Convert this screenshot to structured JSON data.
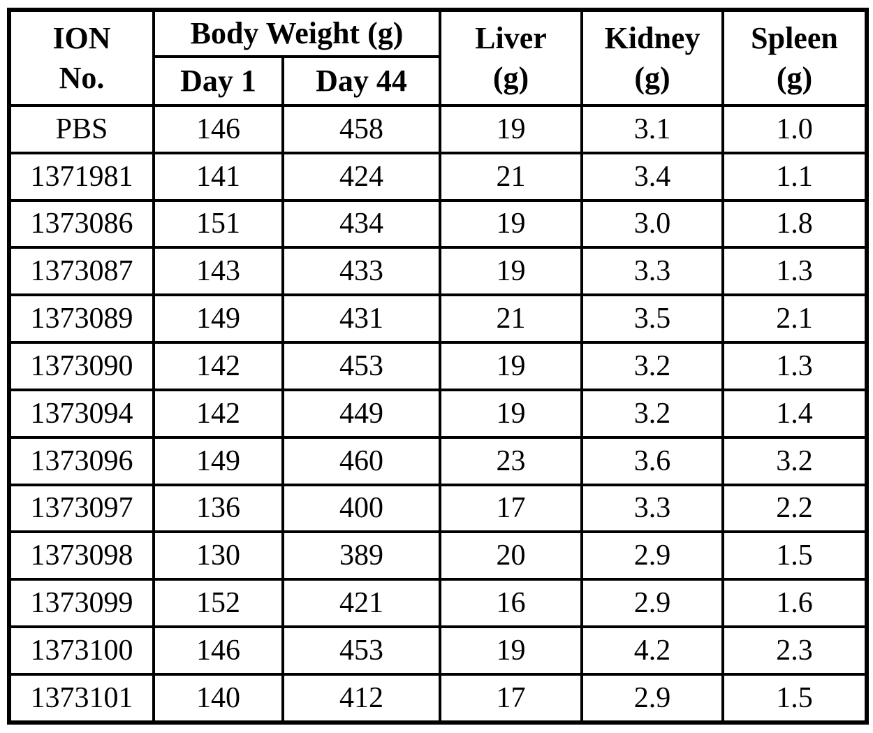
{
  "table": {
    "header": {
      "ion_line1": "ION",
      "ion_line2": "No.",
      "body_weight": "Body Weight (g)",
      "day1": "Day 1",
      "day44": "Day 44",
      "liver_line1": "Liver",
      "liver_line2": "(g)",
      "kidney_line1": "Kidney",
      "kidney_line2": "(g)",
      "spleen_line1": "Spleen",
      "spleen_line2": "(g)"
    },
    "columns": [
      "ION No.",
      "Body Weight (g) Day 1",
      "Body Weight (g) Day 44",
      "Liver (g)",
      "Kidney (g)",
      "Spleen (g)"
    ],
    "rows": [
      [
        "PBS",
        "146",
        "458",
        "19",
        "3.1",
        "1.0"
      ],
      [
        "1371981",
        "141",
        "424",
        "21",
        "3.4",
        "1.1"
      ],
      [
        "1373086",
        "151",
        "434",
        "19",
        "3.0",
        "1.8"
      ],
      [
        "1373087",
        "143",
        "433",
        "19",
        "3.3",
        "1.3"
      ],
      [
        "1373089",
        "149",
        "431",
        "21",
        "3.5",
        "2.1"
      ],
      [
        "1373090",
        "142",
        "453",
        "19",
        "3.2",
        "1.3"
      ],
      [
        "1373094",
        "142",
        "449",
        "19",
        "3.2",
        "1.4"
      ],
      [
        "1373096",
        "149",
        "460",
        "23",
        "3.6",
        "3.2"
      ],
      [
        "1373097",
        "136",
        "400",
        "17",
        "3.3",
        "2.2"
      ],
      [
        "1373098",
        "130",
        "389",
        "20",
        "2.9",
        "1.5"
      ],
      [
        "1373099",
        "152",
        "421",
        "16",
        "2.9",
        "1.6"
      ],
      [
        "1373100",
        "146",
        "453",
        "19",
        "4.2",
        "2.3"
      ],
      [
        "1373101",
        "140",
        "412",
        "17",
        "2.9",
        "1.5"
      ]
    ]
  },
  "chart_data": {
    "type": "table",
    "title": "",
    "columns": [
      "ION No.",
      "Body Weight (g) Day 1",
      "Body Weight (g) Day 44",
      "Liver (g)",
      "Kidney (g)",
      "Spleen (g)"
    ],
    "rows": [
      {
        "ion_no": "PBS",
        "body_weight_day1": 146,
        "body_weight_day44": 458,
        "liver_g": 19,
        "kidney_g": 3.1,
        "spleen_g": 1.0
      },
      {
        "ion_no": "1371981",
        "body_weight_day1": 141,
        "body_weight_day44": 424,
        "liver_g": 21,
        "kidney_g": 3.4,
        "spleen_g": 1.1
      },
      {
        "ion_no": "1373086",
        "body_weight_day1": 151,
        "body_weight_day44": 434,
        "liver_g": 19,
        "kidney_g": 3.0,
        "spleen_g": 1.8
      },
      {
        "ion_no": "1373087",
        "body_weight_day1": 143,
        "body_weight_day44": 433,
        "liver_g": 19,
        "kidney_g": 3.3,
        "spleen_g": 1.3
      },
      {
        "ion_no": "1373089",
        "body_weight_day1": 149,
        "body_weight_day44": 431,
        "liver_g": 21,
        "kidney_g": 3.5,
        "spleen_g": 2.1
      },
      {
        "ion_no": "1373090",
        "body_weight_day1": 142,
        "body_weight_day44": 453,
        "liver_g": 19,
        "kidney_g": 3.2,
        "spleen_g": 1.3
      },
      {
        "ion_no": "1373094",
        "body_weight_day1": 142,
        "body_weight_day44": 449,
        "liver_g": 19,
        "kidney_g": 3.2,
        "spleen_g": 1.4
      },
      {
        "ion_no": "1373096",
        "body_weight_day1": 149,
        "body_weight_day44": 460,
        "liver_g": 23,
        "kidney_g": 3.6,
        "spleen_g": 3.2
      },
      {
        "ion_no": "1373097",
        "body_weight_day1": 136,
        "body_weight_day44": 400,
        "liver_g": 17,
        "kidney_g": 3.3,
        "spleen_g": 2.2
      },
      {
        "ion_no": "1373098",
        "body_weight_day1": 130,
        "body_weight_day44": 389,
        "liver_g": 20,
        "kidney_g": 2.9,
        "spleen_g": 1.5
      },
      {
        "ion_no": "1373099",
        "body_weight_day1": 152,
        "body_weight_day44": 421,
        "liver_g": 16,
        "kidney_g": 2.9,
        "spleen_g": 1.6
      },
      {
        "ion_no": "1373100",
        "body_weight_day1": 146,
        "body_weight_day44": 453,
        "liver_g": 19,
        "kidney_g": 4.2,
        "spleen_g": 2.3
      },
      {
        "ion_no": "1373101",
        "body_weight_day1": 140,
        "body_weight_day44": 412,
        "liver_g": 17,
        "kidney_g": 2.9,
        "spleen_g": 1.5
      }
    ]
  },
  "colors": {
    "border": "#000000",
    "background": "#ffffff",
    "text": "#000000"
  }
}
